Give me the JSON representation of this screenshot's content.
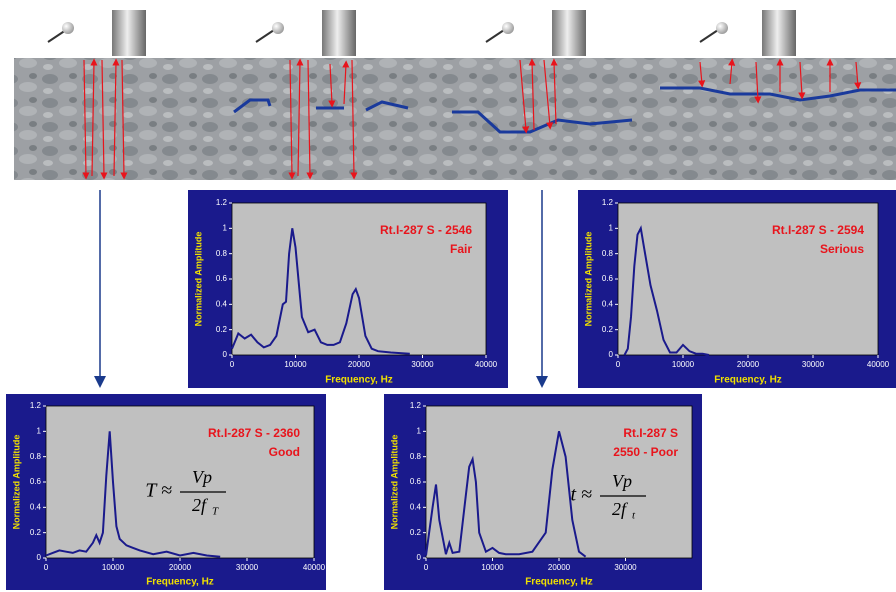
{
  "chart_data": [
    {
      "type": "line",
      "title": [
        "Rt.I-287 S - 2546",
        "Fair"
      ],
      "xlabel": "Frequency, Hz",
      "ylabel": "Normalized Amplitude",
      "x": [
        0,
        1000,
        2000,
        3000,
        4000,
        5000,
        6000,
        7000,
        8000,
        8500,
        9000,
        9500,
        10000,
        11000,
        12000,
        13000,
        14000,
        15000,
        16000,
        17000,
        18000,
        19000,
        19500,
        20000,
        21000,
        22000,
        23000,
        25000,
        28000
      ],
      "values": [
        0.05,
        0.17,
        0.13,
        0.16,
        0.1,
        0.06,
        0.08,
        0.15,
        0.4,
        0.42,
        0.8,
        1.0,
        0.85,
        0.3,
        0.18,
        0.2,
        0.1,
        0.08,
        0.08,
        0.1,
        0.25,
        0.48,
        0.52,
        0.45,
        0.15,
        0.05,
        0.03,
        0.02,
        0.01
      ],
      "color": "#1a1a8c",
      "xlim": [
        0,
        40000
      ],
      "ylim": [
        0,
        1.2
      ],
      "xticks": [
        0,
        10000,
        20000,
        30000,
        40000
      ],
      "yticks": [
        0,
        0.2,
        0.4,
        0.6,
        0.8,
        1,
        1.2
      ]
    },
    {
      "type": "line",
      "title": [
        "Rt.I-287 S - 2594",
        "Serious"
      ],
      "xlabel": "Frequency, Hz",
      "ylabel": "Normalized Amplitude",
      "x": [
        1000,
        1500,
        2000,
        2500,
        3000,
        3500,
        4000,
        5000,
        6000,
        7000,
        8000,
        9000,
        10000,
        11000,
        12000,
        13000,
        14000
      ],
      "values": [
        0.0,
        0.05,
        0.3,
        0.7,
        0.95,
        1.0,
        0.85,
        0.55,
        0.35,
        0.12,
        0.02,
        0.02,
        0.08,
        0.03,
        0.01,
        0.01,
        0.0
      ],
      "color": "#1a1a8c",
      "xlim": [
        0,
        40000
      ],
      "ylim": [
        0,
        1.2
      ],
      "xticks": [
        0,
        10000,
        20000,
        30000,
        40000
      ],
      "yticks": [
        0,
        0.2,
        0.4,
        0.6,
        0.8,
        1,
        1.2
      ]
    },
    {
      "type": "line",
      "title": [
        "Rt.I-287 S - 2360",
        "Good"
      ],
      "xlabel": "Frequency, Hz",
      "ylabel": "Normalized Amplitude",
      "x": [
        0,
        1000,
        2000,
        3000,
        4000,
        5000,
        6000,
        7000,
        7500,
        8000,
        8500,
        9000,
        9500,
        10000,
        10500,
        11000,
        12000,
        13000,
        14000,
        16000,
        18000,
        20000,
        22000,
        24000,
        26000
      ],
      "values": [
        0.02,
        0.04,
        0.06,
        0.05,
        0.04,
        0.06,
        0.05,
        0.12,
        0.18,
        0.12,
        0.2,
        0.65,
        1.0,
        0.6,
        0.25,
        0.15,
        0.1,
        0.08,
        0.06,
        0.03,
        0.05,
        0.02,
        0.04,
        0.02,
        0.01
      ],
      "color": "#1a1a8c",
      "xlim": [
        0,
        40000
      ],
      "ylim": [
        0,
        1.2
      ],
      "xticks": [
        0,
        10000,
        20000,
        30000,
        40000
      ],
      "yticks": [
        0,
        0.2,
        0.4,
        0.6,
        0.8,
        1,
        1.2
      ],
      "annotation": {
        "lhs": "T ≈",
        "num": "Vp",
        "den": "2f",
        "sub": "T"
      }
    },
    {
      "type": "line",
      "title": [
        "Rt.I-287 S",
        "2550 - Poor"
      ],
      "xlabel": "Frequency, Hz",
      "ylabel": "Normalized Amplitude",
      "x": [
        0,
        1000,
        1500,
        2000,
        3000,
        3500,
        4000,
        5000,
        6000,
        6500,
        7000,
        7500,
        8000,
        9000,
        10000,
        11000,
        12000,
        14000,
        16000,
        18000,
        19000,
        20000,
        21000,
        22000,
        23000,
        24000
      ],
      "values": [
        0.02,
        0.4,
        0.58,
        0.3,
        0.03,
        0.12,
        0.04,
        0.05,
        0.5,
        0.72,
        0.78,
        0.6,
        0.2,
        0.05,
        0.08,
        0.04,
        0.03,
        0.03,
        0.05,
        0.2,
        0.7,
        1.0,
        0.8,
        0.3,
        0.05,
        0.01
      ],
      "color": "#1a1a8c",
      "xlim": [
        0,
        40000
      ],
      "ylim": [
        0,
        1.2
      ],
      "xticks": [
        0,
        10000,
        20000,
        30000
      ],
      "yticks": [
        0,
        0.2,
        0.4,
        0.6,
        0.8,
        1,
        1.2
      ],
      "annotation": {
        "lhs": "t ≈",
        "num": "Vp",
        "den": "2f",
        "sub": "t"
      }
    }
  ]
}
